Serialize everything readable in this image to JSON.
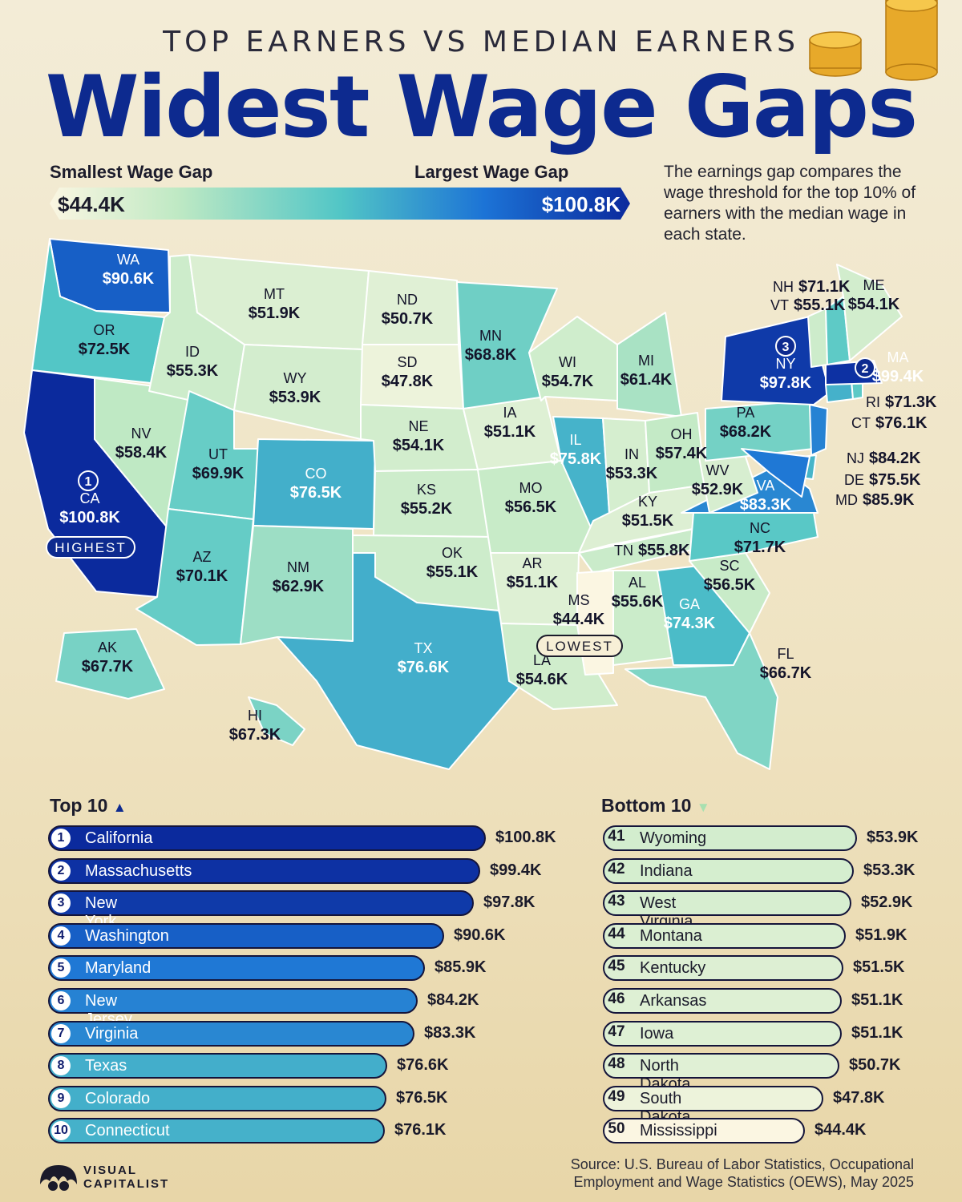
{
  "header": {
    "subtitle": "TOP EARNERS VS MEDIAN EARNERS",
    "title": "Widest Wage Gaps"
  },
  "legend": {
    "left_label": "Smallest Wage Gap",
    "right_label": "Largest Wage Gap",
    "min_value": "$44.4K",
    "max_value": "$100.8K",
    "colors": [
      "#fbf6e2",
      "#bfe9c4",
      "#52c6c6",
      "#1c73d6",
      "#0b2a9d"
    ]
  },
  "note": "The earnings gap compares the wage threshold for the top 10% of earners with the median wage in each state.",
  "map": {
    "highest_badge": "HIGHEST",
    "lowest_badge": "LOWEST",
    "rank_markers": [
      "1",
      "2",
      "3"
    ],
    "states": [
      {
        "abbr": "WA",
        "value": "$90.6K",
        "gap": 90.6
      },
      {
        "abbr": "OR",
        "value": "$72.5K",
        "gap": 72.5
      },
      {
        "abbr": "CA",
        "value": "$100.8K",
        "gap": 100.8
      },
      {
        "abbr": "NV",
        "value": "$58.4K",
        "gap": 58.4
      },
      {
        "abbr": "ID",
        "value": "$55.3K",
        "gap": 55.3
      },
      {
        "abbr": "MT",
        "value": "$51.9K",
        "gap": 51.9
      },
      {
        "abbr": "WY",
        "value": "$53.9K",
        "gap": 53.9
      },
      {
        "abbr": "UT",
        "value": "$69.9K",
        "gap": 69.9
      },
      {
        "abbr": "AZ",
        "value": "$70.1K",
        "gap": 70.1
      },
      {
        "abbr": "CO",
        "value": "$76.5K",
        "gap": 76.5
      },
      {
        "abbr": "NM",
        "value": "$62.9K",
        "gap": 62.9
      },
      {
        "abbr": "ND",
        "value": "$50.7K",
        "gap": 50.7
      },
      {
        "abbr": "SD",
        "value": "$47.8K",
        "gap": 47.8
      },
      {
        "abbr": "NE",
        "value": "$54.1K",
        "gap": 54.1
      },
      {
        "abbr": "KS",
        "value": "$55.2K",
        "gap": 55.2
      },
      {
        "abbr": "OK",
        "value": "$55.1K",
        "gap": 55.1
      },
      {
        "abbr": "TX",
        "value": "$76.6K",
        "gap": 76.6
      },
      {
        "abbr": "MN",
        "value": "$68.8K",
        "gap": 68.8
      },
      {
        "abbr": "IA",
        "value": "$51.1K",
        "gap": 51.1
      },
      {
        "abbr": "MO",
        "value": "$56.5K",
        "gap": 56.5
      },
      {
        "abbr": "AR",
        "value": "$51.1K",
        "gap": 51.1
      },
      {
        "abbr": "LA",
        "value": "$54.6K",
        "gap": 54.6
      },
      {
        "abbr": "WI",
        "value": "$54.7K",
        "gap": 54.7
      },
      {
        "abbr": "IL",
        "value": "$75.8K",
        "gap": 75.8
      },
      {
        "abbr": "MI",
        "value": "$61.4K",
        "gap": 61.4
      },
      {
        "abbr": "IN",
        "value": "$53.3K",
        "gap": 53.3
      },
      {
        "abbr": "OH",
        "value": "$57.4K",
        "gap": 57.4
      },
      {
        "abbr": "KY",
        "value": "$51.5K",
        "gap": 51.5
      },
      {
        "abbr": "TN",
        "value": "$55.8K",
        "gap": 55.8
      },
      {
        "abbr": "MS",
        "value": "$44.4K",
        "gap": 44.4
      },
      {
        "abbr": "AL",
        "value": "$55.6K",
        "gap": 55.6
      },
      {
        "abbr": "GA",
        "value": "$74.3K",
        "gap": 74.3
      },
      {
        "abbr": "FL",
        "value": "$66.7K",
        "gap": 66.7
      },
      {
        "abbr": "SC",
        "value": "$56.5K",
        "gap": 56.5
      },
      {
        "abbr": "NC",
        "value": "$71.7K",
        "gap": 71.7
      },
      {
        "abbr": "VA",
        "value": "$83.3K",
        "gap": 83.3
      },
      {
        "abbr": "WV",
        "value": "$52.9K",
        "gap": 52.9
      },
      {
        "abbr": "PA",
        "value": "$68.2K",
        "gap": 68.2
      },
      {
        "abbr": "NY",
        "value": "$97.8K",
        "gap": 97.8
      },
      {
        "abbr": "NJ",
        "value": "$84.2K",
        "gap": 84.2
      },
      {
        "abbr": "DE",
        "value": "$75.5K",
        "gap": 75.5
      },
      {
        "abbr": "MD",
        "value": "$85.9K",
        "gap": 85.9
      },
      {
        "abbr": "CT",
        "value": "$76.1K",
        "gap": 76.1
      },
      {
        "abbr": "RI",
        "value": "$71.3K",
        "gap": 71.3
      },
      {
        "abbr": "MA",
        "value": "$99.4K",
        "gap": 99.4
      },
      {
        "abbr": "VT",
        "value": "$55.1K",
        "gap": 55.1
      },
      {
        "abbr": "NH",
        "value": "$71.1K",
        "gap": 71.1
      },
      {
        "abbr": "ME",
        "value": "$54.1K",
        "gap": 54.1
      },
      {
        "abbr": "AK",
        "value": "$67.7K",
        "gap": 67.7
      },
      {
        "abbr": "HI",
        "value": "$67.3K",
        "gap": 67.3
      }
    ]
  },
  "top10": {
    "heading": "Top 10",
    "items": [
      {
        "rank": "1",
        "name": "California",
        "value": "$100.8K",
        "gap": 100.8
      },
      {
        "rank": "2",
        "name": "Massachusetts",
        "value": "$99.4K",
        "gap": 99.4
      },
      {
        "rank": "3",
        "name": "New York",
        "value": "$97.8K",
        "gap": 97.8
      },
      {
        "rank": "4",
        "name": "Washington",
        "value": "$90.6K",
        "gap": 90.6
      },
      {
        "rank": "5",
        "name": "Maryland",
        "value": "$85.9K",
        "gap": 85.9
      },
      {
        "rank": "6",
        "name": "New Jersey",
        "value": "$84.2K",
        "gap": 84.2
      },
      {
        "rank": "7",
        "name": "Virginia",
        "value": "$83.3K",
        "gap": 83.3
      },
      {
        "rank": "8",
        "name": "Texas",
        "value": "$76.6K",
        "gap": 76.6
      },
      {
        "rank": "9",
        "name": "Colorado",
        "value": "$76.5K",
        "gap": 76.5
      },
      {
        "rank": "10",
        "name": "Connecticut",
        "value": "$76.1K",
        "gap": 76.1
      }
    ]
  },
  "bottom10": {
    "heading": "Bottom 10",
    "items": [
      {
        "rank": "41",
        "name": "Wyoming",
        "value": "$53.9K",
        "gap": 53.9
      },
      {
        "rank": "42",
        "name": "Indiana",
        "value": "$53.3K",
        "gap": 53.3
      },
      {
        "rank": "43",
        "name": "West Virginia",
        "value": "$52.9K",
        "gap": 52.9
      },
      {
        "rank": "44",
        "name": "Montana",
        "value": "$51.9K",
        "gap": 51.9
      },
      {
        "rank": "45",
        "name": "Kentucky",
        "value": "$51.5K",
        "gap": 51.5
      },
      {
        "rank": "46",
        "name": "Arkansas",
        "value": "$51.1K",
        "gap": 51.1
      },
      {
        "rank": "47",
        "name": "Iowa",
        "value": "$51.1K",
        "gap": 51.1
      },
      {
        "rank": "48",
        "name": "North Dakota",
        "value": "$50.7K",
        "gap": 50.7
      },
      {
        "rank": "49",
        "name": "South Dakota",
        "value": "$47.8K",
        "gap": 47.8
      },
      {
        "rank": "50",
        "name": "Mississippi",
        "value": "$44.4K",
        "gap": 44.4
      }
    ]
  },
  "footer": {
    "brand_line1": "VISUAL",
    "brand_line2": "CAPITALIST",
    "source_line1": "Source: U.S. Bureau of Labor Statistics, Occupational",
    "source_line2": "Employment and Wage Statistics (OEWS), May 2025"
  }
}
